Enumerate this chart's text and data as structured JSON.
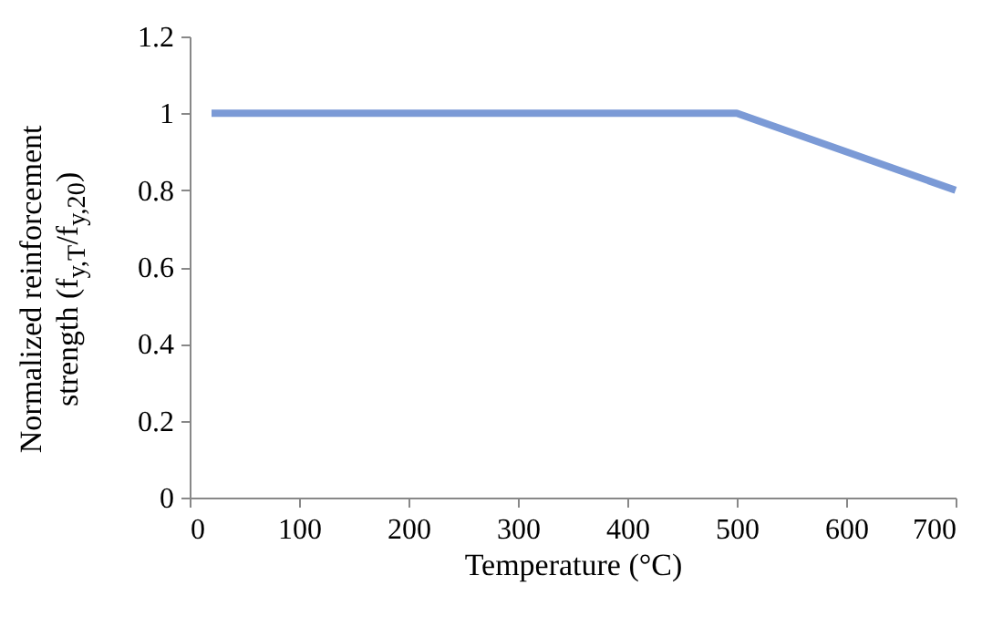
{
  "chart_data": {
    "type": "line",
    "xlabel": "Temperature (°C)",
    "ylabel": "Normalized reinforcement strength (f$_{y,T}$/f$_{y,20}$)",
    "series": [
      {
        "color": "#7b9ad6",
        "x": [
          20,
          500,
          700
        ],
        "values": [
          1,
          1,
          0.8
        ]
      }
    ],
    "xlim": [
      0,
      700
    ],
    "xticks": [
      0,
      100,
      200,
      300,
      400,
      500,
      600,
      700
    ],
    "ylim": [
      0,
      1.2
    ],
    "yticks": [
      0,
      0.2,
      0.4,
      0.6,
      0.8,
      1,
      1.2
    ],
    "grid": false,
    "marker": "none",
    "line_style": "solid"
  }
}
